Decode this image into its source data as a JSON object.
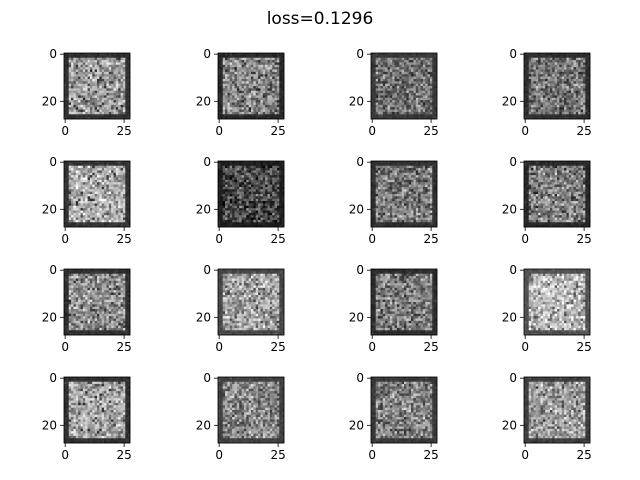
{
  "figure": {
    "title": "loss=0.1296",
    "grid": {
      "rows": 4,
      "cols": 4
    },
    "panels": [
      {
        "panel": 1,
        "x_ticks": [
          "0",
          "25"
        ],
        "y_ticks": [
          "0",
          "20"
        ],
        "tone": 0.62,
        "background": 0.15
      },
      {
        "panel": 2,
        "x_ticks": [
          "0",
          "25"
        ],
        "y_ticks": [
          "0",
          "20"
        ],
        "tone": 0.55,
        "background": 0.12
      },
      {
        "panel": 3,
        "x_ticks": [
          "0",
          "25"
        ],
        "y_ticks": [
          "0",
          "20"
        ],
        "tone": 0.45,
        "background": 0.18
      },
      {
        "panel": 4,
        "x_ticks": [
          "0",
          "25"
        ],
        "y_ticks": [
          "0",
          "20"
        ],
        "tone": 0.48,
        "background": 0.14
      },
      {
        "panel": 5,
        "x_ticks": [
          "0",
          "25"
        ],
        "y_ticks": [
          "0",
          "20"
        ],
        "tone": 0.7,
        "background": 0.16
      },
      {
        "panel": 6,
        "x_ticks": [
          "0",
          "25"
        ],
        "y_ticks": [
          "0",
          "20"
        ],
        "tone": 0.3,
        "background": 0.08
      },
      {
        "panel": 7,
        "x_ticks": [
          "0",
          "25"
        ],
        "y_ticks": [
          "0",
          "20"
        ],
        "tone": 0.5,
        "background": 0.15
      },
      {
        "panel": 8,
        "x_ticks": [
          "0",
          "25"
        ],
        "y_ticks": [
          "0",
          "20"
        ],
        "tone": 0.52,
        "background": 0.12
      },
      {
        "panel": 9,
        "x_ticks": [
          "0",
          "25"
        ],
        "y_ticks": [
          "0",
          "20"
        ],
        "tone": 0.58,
        "background": 0.15
      },
      {
        "panel": 10,
        "x_ticks": [
          "0",
          "25"
        ],
        "y_ticks": [
          "0",
          "20"
        ],
        "tone": 0.66,
        "background": 0.24
      },
      {
        "panel": 11,
        "x_ticks": [
          "0",
          "25"
        ],
        "y_ticks": [
          "0",
          "20"
        ],
        "tone": 0.5,
        "background": 0.14
      },
      {
        "panel": 12,
        "x_ticks": [
          "0",
          "25"
        ],
        "y_ticks": [
          "0",
          "20"
        ],
        "tone": 0.75,
        "background": 0.28
      },
      {
        "panel": 13,
        "x_ticks": [
          "0",
          "25"
        ],
        "y_ticks": [
          "0",
          "20"
        ],
        "tone": 0.65,
        "background": 0.15
      },
      {
        "panel": 14,
        "x_ticks": [
          "0",
          "25"
        ],
        "y_ticks": [
          "0",
          "20"
        ],
        "tone": 0.55,
        "background": 0.22
      },
      {
        "panel": 15,
        "x_ticks": [
          "0",
          "25"
        ],
        "y_ticks": [
          "0",
          "20"
        ],
        "tone": 0.52,
        "background": 0.18
      },
      {
        "panel": 16,
        "x_ticks": [
          "0",
          "25"
        ],
        "y_ticks": [
          "0",
          "20"
        ],
        "tone": 0.62,
        "background": 0.2
      }
    ]
  },
  "colors": {
    "background": "#ffffff",
    "axis": "#000000",
    "text": "#000000"
  }
}
